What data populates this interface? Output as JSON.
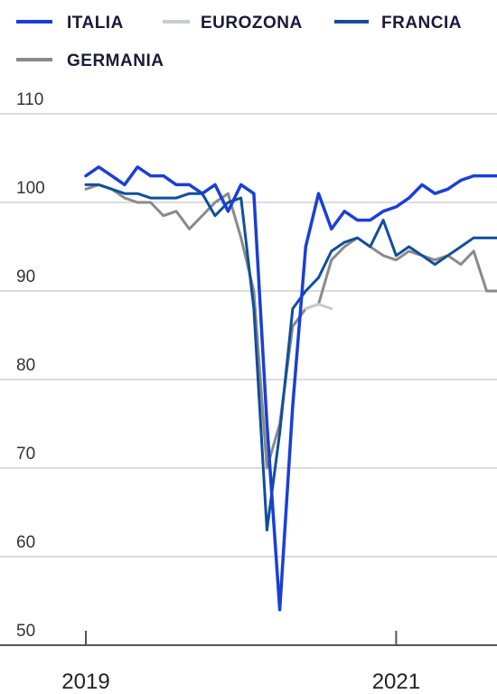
{
  "chart_data": {
    "type": "line",
    "title": "",
    "xlabel": "",
    "ylabel": "",
    "ylim": [
      50,
      110
    ],
    "yticks": [
      50,
      60,
      70,
      80,
      90,
      100,
      110
    ],
    "xlim": [
      2019.0,
      2021.65
    ],
    "xtick_labels": [
      {
        "value": 2019,
        "label": "2019"
      },
      {
        "value": 2021,
        "label": "2021"
      }
    ],
    "grid": "horizontal",
    "legend": {
      "position": "top-left"
    },
    "series": [
      {
        "name": "ITALIA",
        "color": "#1a3fd6",
        "x": [
          2019.0,
          2019.083,
          2019.167,
          2019.25,
          2019.333,
          2019.417,
          2019.5,
          2019.583,
          2019.667,
          2019.75,
          2019.833,
          2019.917,
          2020.0,
          2020.083,
          2020.167,
          2020.25,
          2020.333,
          2020.417,
          2020.5,
          2020.583,
          2020.667,
          2020.75,
          2020.833,
          2020.917,
          2021.0,
          2021.083,
          2021.167,
          2021.25,
          2021.333,
          2021.417,
          2021.5,
          2021.583,
          2021.65
        ],
        "values": [
          103,
          104,
          103,
          102,
          104,
          103,
          103,
          102,
          102,
          101,
          102,
          99,
          102,
          101,
          75,
          54,
          77,
          95,
          101,
          97,
          99,
          98,
          98,
          99,
          99.5,
          100.5,
          102,
          101,
          101.5,
          102.5,
          103,
          103,
          103
        ]
      },
      {
        "name": "EUROZONA",
        "color": "#c8cbcf",
        "x": [
          2020.417,
          2020.5,
          2020.583
        ],
        "values": [
          88,
          88.5,
          88
        ]
      },
      {
        "name": "FRANCIA",
        "color": "#0f4f9c",
        "x": [
          2019.0,
          2019.083,
          2019.167,
          2019.25,
          2019.333,
          2019.417,
          2019.5,
          2019.583,
          2019.667,
          2019.75,
          2019.833,
          2019.917,
          2020.0,
          2020.083,
          2020.167,
          2020.25,
          2020.333,
          2020.417,
          2020.5,
          2020.583,
          2020.667,
          2020.75,
          2020.833,
          2020.917,
          2021.0,
          2021.083,
          2021.167,
          2021.25,
          2021.333,
          2021.417,
          2021.5,
          2021.583,
          2021.65
        ],
        "values": [
          102,
          102,
          101.5,
          101,
          101,
          100.5,
          100.5,
          100.5,
          101,
          101,
          98.5,
          100,
          100.5,
          88,
          63,
          74,
          88,
          90,
          91.5,
          94.5,
          95.5,
          96,
          95,
          98,
          94,
          95,
          94,
          93,
          94,
          95,
          96,
          96,
          96
        ]
      },
      {
        "name": "GERMANIA",
        "color": "#8a8a8a",
        "x": [
          2019.0,
          2019.083,
          2019.167,
          2019.25,
          2019.333,
          2019.417,
          2019.5,
          2019.583,
          2019.667,
          2019.75,
          2019.833,
          2019.917,
          2020.0,
          2020.083,
          2020.167,
          2020.25,
          2020.333,
          2020.417,
          2020.5,
          2020.583,
          2020.667,
          2020.75,
          2020.833,
          2020.917,
          2021.0,
          2021.083,
          2021.167,
          2021.25,
          2021.333,
          2021.417,
          2021.5,
          2021.583,
          2021.65
        ],
        "values": [
          101.5,
          102,
          101.5,
          100.5,
          100,
          100,
          98.5,
          99,
          97,
          98.5,
          100,
          101,
          96,
          90,
          70,
          75,
          86,
          88,
          88.5,
          93.5,
          95,
          96,
          95,
          94,
          93.5,
          94.5,
          94,
          93.5,
          94,
          93,
          94.5,
          90,
          90
        ]
      }
    ]
  }
}
